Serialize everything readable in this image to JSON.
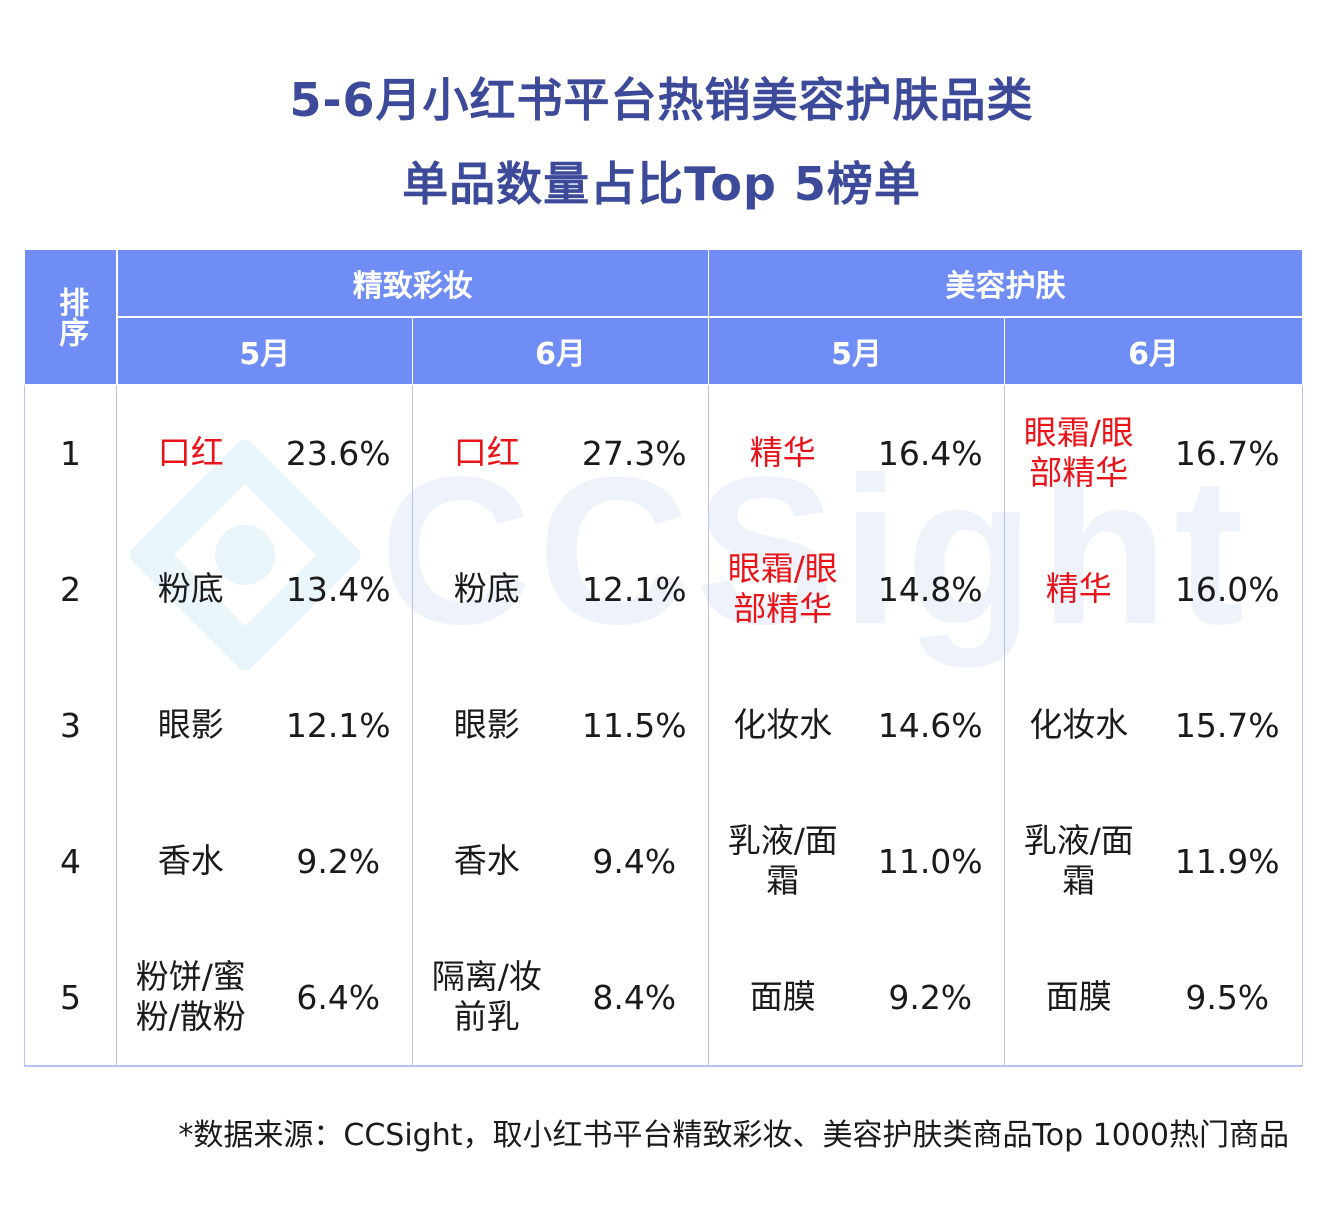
{
  "title_line1": "5-6月小红书平台热销美容护肤品类",
  "title_line2": "单品数量占比Top 5榜单",
  "watermark": "CCSight",
  "headers": {
    "rank": "排序",
    "groups": [
      "精致彩妆",
      "美容护肤"
    ],
    "months": [
      "5月",
      "6月",
      "5月",
      "6月"
    ]
  },
  "colors": {
    "header_bg": "#6f8df5",
    "title": "#3d4a9a",
    "highlight": "#e8141a"
  },
  "rows": [
    {
      "rank": "1",
      "cells": [
        {
          "name": "口红",
          "pct": "23.6%",
          "highlight": true
        },
        {
          "name": "口红",
          "pct": "27.3%",
          "highlight": true
        },
        {
          "name": "精华",
          "pct": "16.4%",
          "highlight": true
        },
        {
          "name": "眼霜/眼部精华",
          "pct": "16.7%",
          "highlight": true
        }
      ]
    },
    {
      "rank": "2",
      "cells": [
        {
          "name": "粉底",
          "pct": "13.4%",
          "highlight": false
        },
        {
          "name": "粉底",
          "pct": "12.1%",
          "highlight": false
        },
        {
          "name": "眼霜/眼部精华",
          "pct": "14.8%",
          "highlight": true
        },
        {
          "name": "精华",
          "pct": "16.0%",
          "highlight": true
        }
      ]
    },
    {
      "rank": "3",
      "cells": [
        {
          "name": "眼影",
          "pct": "12.1%",
          "highlight": false
        },
        {
          "name": "眼影",
          "pct": "11.5%",
          "highlight": false
        },
        {
          "name": "化妆水",
          "pct": "14.6%",
          "highlight": false
        },
        {
          "name": "化妆水",
          "pct": "15.7%",
          "highlight": false
        }
      ]
    },
    {
      "rank": "4",
      "cells": [
        {
          "name": "香水",
          "pct": "9.2%",
          "highlight": false
        },
        {
          "name": "香水",
          "pct": "9.4%",
          "highlight": false
        },
        {
          "name": "乳液/面霜",
          "pct": "11.0%",
          "highlight": false
        },
        {
          "name": "乳液/面霜",
          "pct": "11.9%",
          "highlight": false
        }
      ]
    },
    {
      "rank": "5",
      "cells": [
        {
          "name": "粉饼/蜜粉/散粉",
          "pct": "6.4%",
          "highlight": false
        },
        {
          "name": "隔离/妆前乳",
          "pct": "8.4%",
          "highlight": false
        },
        {
          "name": "面膜",
          "pct": "9.2%",
          "highlight": false
        },
        {
          "name": "面膜",
          "pct": "9.5%",
          "highlight": false
        }
      ]
    }
  ],
  "footnote": "*数据来源：CCSight，取小红书平台精致彩妆、美容护肤类商品Top 1000热门商品"
}
